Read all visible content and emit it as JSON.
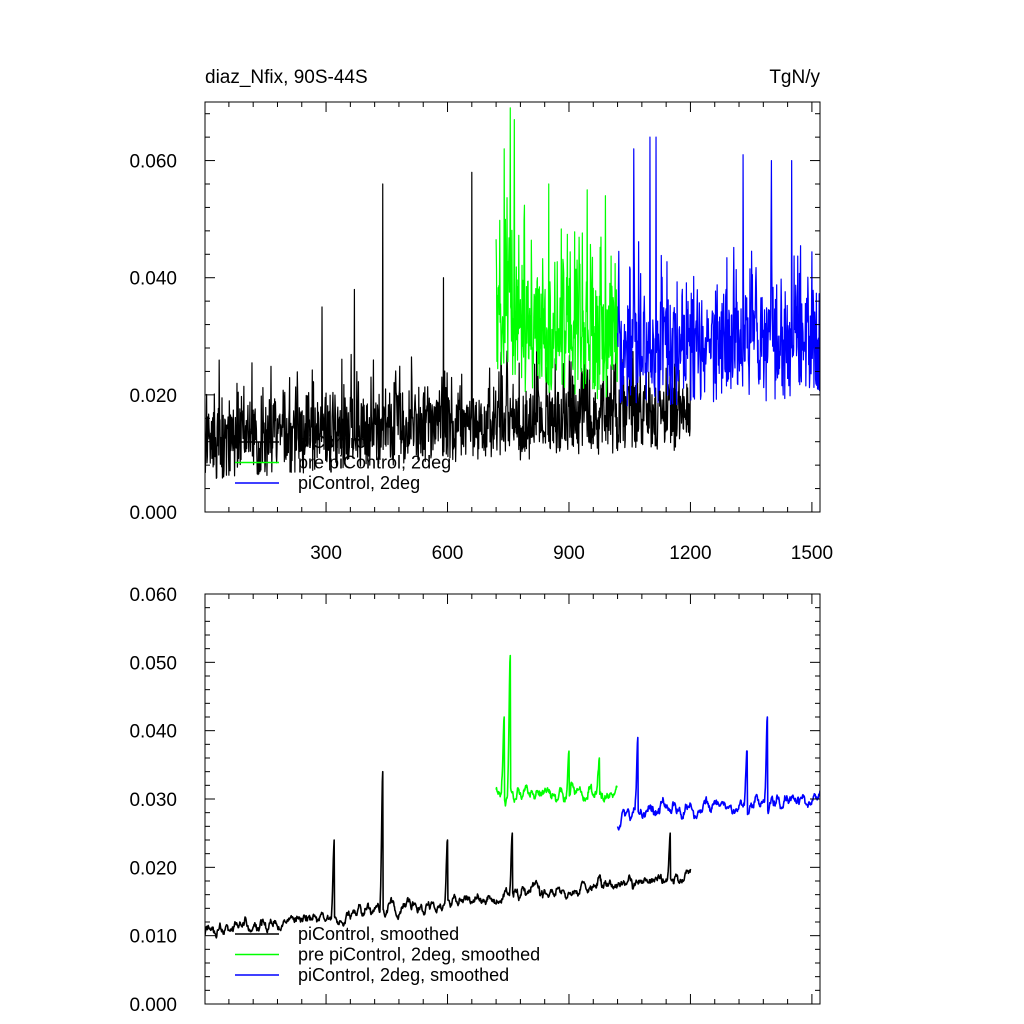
{
  "chart_data": [
    {
      "type": "line",
      "title_left": "diaz_Nfix, 90S-44S",
      "title_right": "TgN/y",
      "xlim": [
        1,
        1520
      ],
      "ylim": [
        0,
        0.07
      ],
      "x_ticks": [
        300,
        600,
        900,
        1200,
        1500
      ],
      "x_tick_labels": [
        "300",
        "600",
        "900",
        "1200",
        "1500"
      ],
      "y_ticks": [
        0,
        0.02,
        0.04,
        0.06
      ],
      "y_tick_labels": [
        "0.000",
        "0.020",
        "0.040",
        "0.060"
      ],
      "legend_position": "bottom-left",
      "series": [
        {
          "name": "piControl",
          "color": "#000000",
          "x_range": [
            1,
            1200
          ],
          "mean_start": 0.011,
          "mean_end": 0.016,
          "noise": 0.006,
          "spikes": [
            [
              440,
              0.056
            ],
            [
              660,
              0.058
            ],
            [
              370,
              0.038
            ],
            [
              590,
              0.04
            ],
            [
              290,
              0.035
            ]
          ]
        },
        {
          "name": "pre piControl, 2deg",
          "color": "#00ff00",
          "x_range": [
            720,
            1020
          ],
          "mean_start": 0.03,
          "mean_end": 0.028,
          "noise": 0.01,
          "spikes": [
            [
              755,
              0.069
            ],
            [
              765,
              0.067
            ],
            [
              740,
              0.062
            ],
            [
              850,
              0.056
            ],
            [
              945,
              0.055
            ],
            [
              990,
              0.054
            ]
          ]
        },
        {
          "name": "piControl, 2deg",
          "color": "#0000ff",
          "x_range": [
            1020,
            1520
          ],
          "mean_start": 0.026,
          "mean_end": 0.027,
          "noise": 0.009,
          "spikes": [
            [
              1060,
              0.062
            ],
            [
              1100,
              0.064
            ],
            [
              1115,
              0.064
            ],
            [
              1330,
              0.061
            ],
            [
              1400,
              0.06
            ],
            [
              1450,
              0.06
            ]
          ]
        }
      ]
    },
    {
      "type": "line",
      "xlim": [
        1,
        1520
      ],
      "ylim": [
        0,
        0.06
      ],
      "x_ticks": [
        300,
        600,
        900,
        1200,
        1500
      ],
      "y_ticks": [
        0,
        0.01,
        0.02,
        0.03,
        0.04,
        0.05,
        0.06
      ],
      "y_tick_labels": [
        "0.000",
        "0.010",
        "0.020",
        "0.030",
        "0.040",
        "0.050",
        "0.060"
      ],
      "legend_position": "bottom-left",
      "series": [
        {
          "name": "piControl, smoothed",
          "color": "#000000",
          "x_range": [
            1,
            1200
          ],
          "mean_start": 0.01,
          "mean_end": 0.018,
          "noise": 0.0025,
          "spikes": [
            [
              440,
              0.034
            ],
            [
              320,
              0.024
            ],
            [
              600,
              0.024
            ],
            [
              760,
              0.025
            ],
            [
              1150,
              0.025
            ]
          ]
        },
        {
          "name": "pre piControl, 2deg, smoothed",
          "color": "#00ff00",
          "x_range": [
            720,
            1020
          ],
          "mean_start": 0.03,
          "mean_end": 0.03,
          "noise": 0.003,
          "spikes": [
            [
              755,
              0.051
            ],
            [
              740,
              0.042
            ],
            [
              900,
              0.037
            ],
            [
              975,
              0.036
            ]
          ]
        },
        {
          "name": "piControl, 2deg, smoothed",
          "color": "#0000ff",
          "x_range": [
            1020,
            1520
          ],
          "mean_start": 0.027,
          "mean_end": 0.029,
          "noise": 0.003,
          "spikes": [
            [
              1070,
              0.039
            ],
            [
              1390,
              0.042
            ],
            [
              1340,
              0.037
            ]
          ]
        }
      ]
    }
  ]
}
